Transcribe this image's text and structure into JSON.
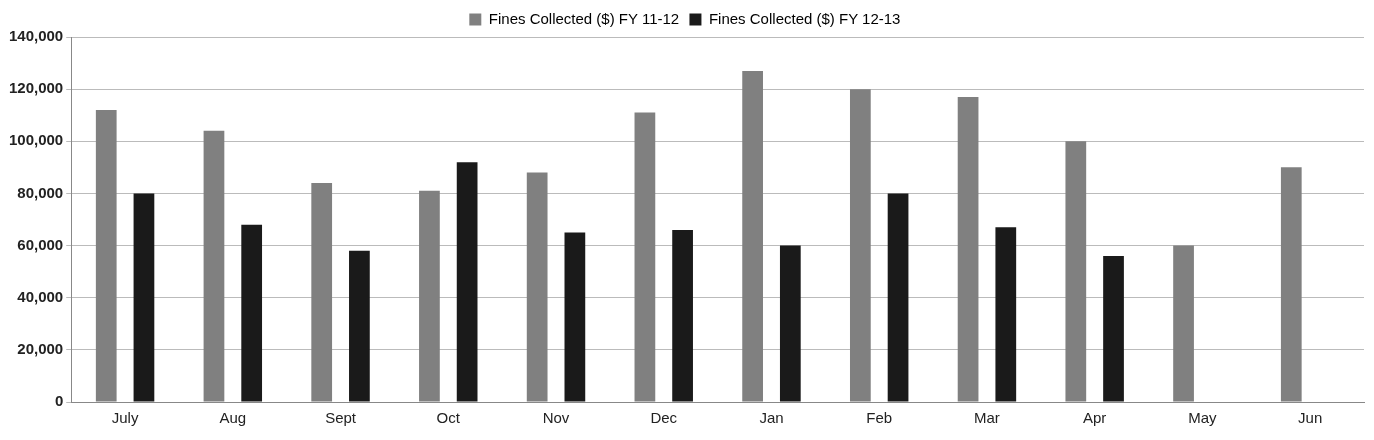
{
  "chart_data": {
    "type": "bar",
    "categories": [
      "July",
      "Aug",
      "Sept",
      "Oct",
      "Nov",
      "Dec",
      "Jan",
      "Feb",
      "Mar",
      "Apr",
      "May",
      "Jun"
    ],
    "series": [
      {
        "name": "Fines Collected ($) FY 11-12",
        "color": "#808080",
        "values": [
          112000,
          104000,
          84000,
          81000,
          88000,
          111000,
          127000,
          120000,
          117000,
          100000,
          60000,
          90000
        ]
      },
      {
        "name": "Fines Collected ($) FY 12-13",
        "color": "#1a1a1a",
        "values": [
          80000,
          68000,
          58000,
          92000,
          65000,
          66000,
          60000,
          80000,
          67000,
          56000,
          null,
          null
        ]
      }
    ],
    "ylim": [
      0,
      140000
    ],
    "yticks": [
      {
        "value": 0,
        "label": "0"
      },
      {
        "value": 20000,
        "label": "20,000"
      },
      {
        "value": 40000,
        "label": "40,000"
      },
      {
        "value": 60000,
        "label": "60,000"
      },
      {
        "value": 80000,
        "label": "80,000"
      },
      {
        "value": 100000,
        "label": "100,000"
      },
      {
        "value": 120000,
        "label": "120,000"
      },
      {
        "value": 140000,
        "label": "140,000"
      }
    ],
    "grid": "y",
    "legend": "top"
  }
}
